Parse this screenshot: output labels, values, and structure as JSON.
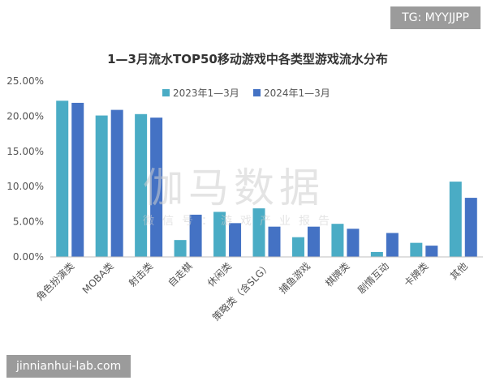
{
  "chart_data": {
    "type": "bar",
    "title": "1—3月流水TOP50移动游戏中各类型游戏流水分布",
    "categories": [
      "角色扮演类",
      "MOBA类",
      "射击类",
      "自走棋",
      "休闲类",
      "策略类（含SLG）",
      "捕鱼游戏",
      "棋牌类",
      "剧情互动",
      "卡牌类",
      "其他"
    ],
    "series": [
      {
        "name": "2023年1—3月",
        "color": "#4aacc5",
        "values": [
          22.2,
          20.1,
          20.3,
          2.4,
          6.4,
          6.9,
          2.8,
          4.7,
          0.7,
          2.0,
          10.7
        ]
      },
      {
        "name": "2024年1—3月",
        "color": "#4472c4",
        "values": [
          21.9,
          20.9,
          19.8,
          6.0,
          4.8,
          4.3,
          4.3,
          4.0,
          3.4,
          1.6,
          8.4
        ]
      }
    ],
    "ylim": [
      0,
      25
    ],
    "yticks": [
      "0.00%",
      "5.00%",
      "10.00%",
      "15.00%",
      "20.00%",
      "25.00%"
    ],
    "legend_position": "top-center",
    "grid": false
  },
  "watermarks": {
    "top_tag": "TG: MYYJJPP",
    "bottom_tag": "jinnianhui-lab.com",
    "center_main": "伽马数据",
    "center_sub": "微信号：游戏产业报告"
  }
}
